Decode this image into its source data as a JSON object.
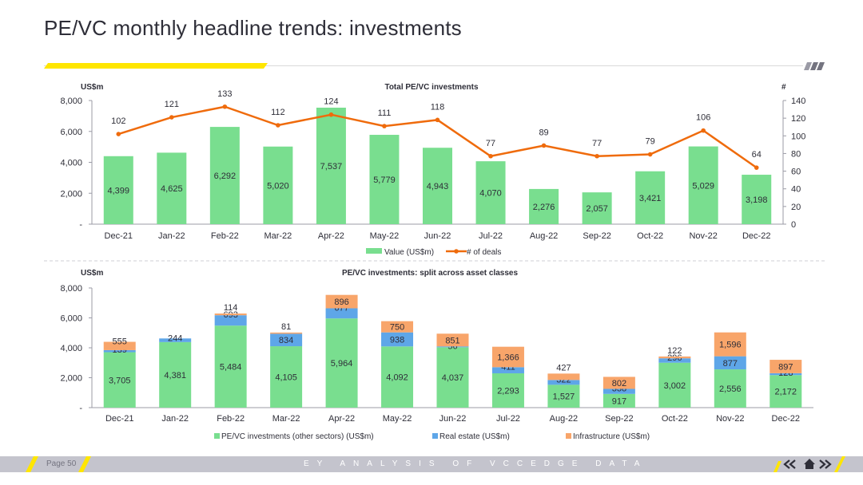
{
  "page": {
    "title": "PE/VC monthly headline trends: investments",
    "page_number": "Page 50",
    "footer_text": "EY ANALYSIS OF VCCEDGE DATA",
    "colors": {
      "accent_yellow": "#ffe600",
      "green": "#79de8f",
      "blue": "#5ea6e8",
      "orange": "#f8a56a",
      "line_orange": "#ef6b0c",
      "dark": "#2e2e38",
      "footer": "#c4c4cd"
    },
    "icons": [
      "double-chevron-left-icon",
      "home-icon",
      "double-chevron-right-icon"
    ]
  },
  "chart_data": [
    {
      "type": "bar",
      "title": "Total PE/VC investments",
      "ylabel": "US$m",
      "y2label": "#",
      "categories": [
        "Dec-21",
        "Jan-22",
        "Feb-22",
        "Mar-22",
        "Apr-22",
        "May-22",
        "Jun-22",
        "Jul-22",
        "Aug-22",
        "Sep-22",
        "Oct-22",
        "Nov-22",
        "Dec-22"
      ],
      "ylim": [
        0,
        8000
      ],
      "y_ticks": [
        "-",
        "2,000",
        "4,000",
        "6,000",
        "8,000"
      ],
      "y2lim": [
        0,
        140
      ],
      "y2_ticks": [
        "0",
        "20",
        "40",
        "60",
        "80",
        "100",
        "120",
        "140"
      ],
      "series": [
        {
          "name": "Value (US$m)",
          "kind": "bar",
          "values": [
            4399,
            4625,
            6292,
            5020,
            7537,
            5779,
            4943,
            4070,
            2276,
            2057,
            3421,
            5029,
            3198
          ]
        },
        {
          "name": "# of deals",
          "kind": "line",
          "axis": "secondary",
          "values": [
            102,
            121,
            133,
            112,
            124,
            111,
            118,
            77,
            89,
            77,
            79,
            106,
            64
          ]
        }
      ],
      "legend": "bottom",
      "grid": false
    },
    {
      "type": "bar",
      "stacked": true,
      "title": "PE/VC investments: split across asset classes",
      "ylabel": "US$m",
      "categories": [
        "Dec-21",
        "Jan-22",
        "Feb-22",
        "Mar-22",
        "Apr-22",
        "May-22",
        "Jun-22",
        "Jul-22",
        "Aug-22",
        "Sep-22",
        "Oct-22",
        "Nov-22",
        "Dec-22"
      ],
      "ylim": [
        0,
        8000
      ],
      "y_ticks": [
        "-",
        "2,000",
        "4,000",
        "6,000",
        "8,000"
      ],
      "series": [
        {
          "name": "PE/VC investments (other sectors) (US$m)",
          "values": [
            3705,
            4381,
            5484,
            4105,
            5964,
            4092,
            4037,
            2293,
            1527,
            917,
            3002,
            2556,
            2172
          ]
        },
        {
          "name": "Real estate (US$m)",
          "values": [
            139,
            244,
            693,
            834,
            677,
            938,
            56,
            411,
            322,
            338,
            296,
            877,
            128
          ]
        },
        {
          "name": "Infrastructure (US$m)",
          "values": [
            555,
            0,
            114,
            81,
            896,
            750,
            851,
            1366,
            427,
            802,
            122,
            1596,
            897
          ]
        }
      ],
      "legend": "bottom",
      "grid": false
    }
  ]
}
